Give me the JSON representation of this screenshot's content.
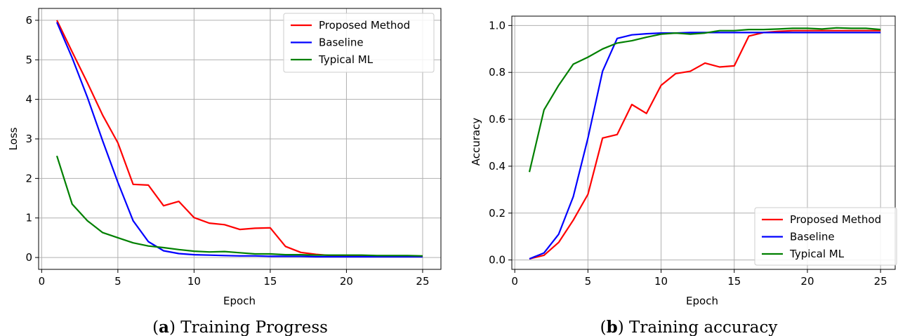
{
  "chart_data": [
    {
      "type": "line",
      "caption": {
        "label": "a",
        "text": " Training Progress"
      },
      "xlabel": "Epoch",
      "ylabel": "Loss",
      "xlim": [
        -0.2,
        26.2
      ],
      "ylim": [
        -0.3,
        6.3
      ],
      "xticks": [
        0,
        5,
        10,
        15,
        20,
        25
      ],
      "yticks": [
        0,
        1,
        2,
        3,
        4,
        5,
        6
      ],
      "grid": true,
      "legend_position": "top-right",
      "x": [
        1,
        2,
        3,
        4,
        5,
        6,
        7,
        8,
        9,
        10,
        11,
        12,
        13,
        14,
        15,
        16,
        17,
        18,
        19,
        20,
        21,
        22,
        23,
        24,
        25
      ],
      "series": [
        {
          "name": "Proposed Method",
          "color": "#ff0000",
          "values": [
            6.0,
            5.2,
            4.42,
            3.6,
            2.9,
            1.85,
            1.83,
            1.31,
            1.42,
            1.01,
            0.87,
            0.83,
            0.71,
            0.74,
            0.75,
            0.28,
            0.13,
            0.08,
            0.05,
            0.05,
            0.04,
            0.04,
            0.04,
            0.03,
            0.03
          ]
        },
        {
          "name": "Baseline",
          "color": "#0000ff",
          "values": [
            5.95,
            5.05,
            4.05,
            2.95,
            1.9,
            0.93,
            0.4,
            0.17,
            0.1,
            0.07,
            0.06,
            0.05,
            0.04,
            0.04,
            0.03,
            0.03,
            0.03,
            0.02,
            0.02,
            0.02,
            0.02,
            0.02,
            0.02,
            0.02,
            0.02
          ]
        },
        {
          "name": "Typical ML",
          "color": "#008000",
          "values": [
            2.57,
            1.35,
            0.93,
            0.63,
            0.5,
            0.37,
            0.29,
            0.25,
            0.2,
            0.16,
            0.14,
            0.15,
            0.12,
            0.09,
            0.09,
            0.07,
            0.07,
            0.06,
            0.06,
            0.06,
            0.06,
            0.05,
            0.05,
            0.05,
            0.04
          ]
        }
      ]
    },
    {
      "type": "line",
      "caption": {
        "label": "b",
        "text": " Training accuracy"
      },
      "xlabel": "Epoch",
      "ylabel": "Accuracy",
      "xlim": [
        -0.2,
        26.0
      ],
      "ylim": [
        -0.04,
        1.04
      ],
      "xticks": [
        0,
        5,
        10,
        15,
        20,
        25
      ],
      "yticks": [
        0.0,
        0.2,
        0.4,
        0.6,
        0.8,
        1.0
      ],
      "yticklabels": [
        "0.0",
        "0.2",
        "0.4",
        "0.6",
        "0.8",
        "1.0"
      ],
      "grid": true,
      "legend_position": "bottom-right",
      "x": [
        1,
        2,
        3,
        4,
        5,
        6,
        7,
        8,
        9,
        10,
        11,
        12,
        13,
        14,
        15,
        16,
        17,
        18,
        19,
        20,
        21,
        22,
        23,
        24,
        25
      ],
      "series": [
        {
          "name": "Proposed Method",
          "color": "#ff0000",
          "values": [
            0.005,
            0.02,
            0.075,
            0.17,
            0.28,
            0.52,
            0.535,
            0.663,
            0.625,
            0.745,
            0.795,
            0.805,
            0.84,
            0.823,
            0.828,
            0.955,
            0.97,
            0.975,
            0.978,
            0.978,
            0.978,
            0.978,
            0.978,
            0.978,
            0.978
          ]
        },
        {
          "name": "Baseline",
          "color": "#0000ff",
          "values": [
            0.005,
            0.03,
            0.11,
            0.27,
            0.52,
            0.805,
            0.945,
            0.96,
            0.965,
            0.968,
            0.968,
            0.97,
            0.97,
            0.97,
            0.97,
            0.97,
            0.97,
            0.97,
            0.97,
            0.97,
            0.97,
            0.97,
            0.97,
            0.97,
            0.97
          ]
        },
        {
          "name": "Typical ML",
          "color": "#008000",
          "values": [
            0.375,
            0.64,
            0.745,
            0.835,
            0.865,
            0.9,
            0.925,
            0.935,
            0.95,
            0.963,
            0.968,
            0.963,
            0.968,
            0.978,
            0.978,
            0.983,
            0.983,
            0.985,
            0.988,
            0.988,
            0.985,
            0.99,
            0.988,
            0.988,
            0.983
          ]
        }
      ]
    }
  ]
}
